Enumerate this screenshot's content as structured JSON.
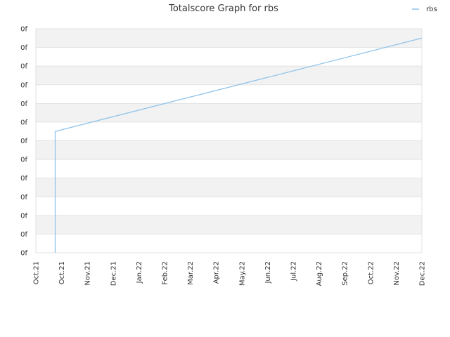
{
  "chart_data": {
    "type": "line",
    "title": "Totalscore Graph for rbs",
    "xlabel": "",
    "ylabel": "",
    "x_ticks": [
      "Oct.21",
      "Oct.21",
      "Nov.21",
      "Dec.21",
      "Jan.22",
      "Feb.22",
      "Mar.22",
      "Apr.22",
      "May.22",
      "Jun.22",
      "Jul.22",
      "Aug.22",
      "Sep.22",
      "Oct.22",
      "Nov.22",
      "Dec.22"
    ],
    "y_ticks": [
      "0f",
      "0f",
      "0f",
      "0f",
      "0f",
      "0f",
      "0f",
      "0f",
      "0f",
      "0f",
      "0f",
      "0f",
      "0f"
    ],
    "ylim": [
      0,
      12
    ],
    "grid": true,
    "legend_position": "top-right",
    "series": [
      {
        "name": "rbs",
        "color": "#8fc3ea",
        "points": [
          {
            "x": 0.75,
            "y": 0
          },
          {
            "x": 0.75,
            "y": 6.5
          },
          {
            "x": 15.0,
            "y": 11.5
          }
        ]
      }
    ]
  }
}
